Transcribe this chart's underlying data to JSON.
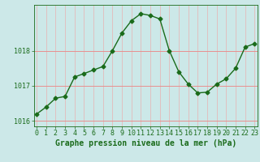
{
  "x": [
    0,
    1,
    2,
    3,
    4,
    5,
    6,
    7,
    8,
    9,
    10,
    11,
    12,
    13,
    14,
    15,
    16,
    17,
    18,
    19,
    20,
    21,
    22,
    23
  ],
  "y": [
    1016.2,
    1016.4,
    1016.65,
    1016.7,
    1017.25,
    1017.35,
    1017.45,
    1017.55,
    1018.0,
    1018.5,
    1018.85,
    1019.05,
    1019.0,
    1018.9,
    1018.0,
    1017.4,
    1017.05,
    1016.8,
    1016.82,
    1017.05,
    1017.2,
    1017.5,
    1018.1,
    1018.2
  ],
  "ylim": [
    1015.85,
    1019.3
  ],
  "yticks": [
    1016,
    1017,
    1018
  ],
  "xticks": [
    0,
    1,
    2,
    3,
    4,
    5,
    6,
    7,
    8,
    9,
    10,
    11,
    12,
    13,
    14,
    15,
    16,
    17,
    18,
    19,
    20,
    21,
    22,
    23
  ],
  "xlabel": "Graphe pression niveau de la mer (hPa)",
  "line_color": "#1a6b1a",
  "bg_color": "#cce8e8",
  "grid_color_h": "#e89090",
  "grid_color_v": "#e8b0b0",
  "tick_color": "#1a6b1a",
  "label_color": "#1a6b1a",
  "marker": "D",
  "markersize": 2.5,
  "linewidth": 1.0,
  "tick_fontsize": 6,
  "xlabel_fontsize": 7
}
